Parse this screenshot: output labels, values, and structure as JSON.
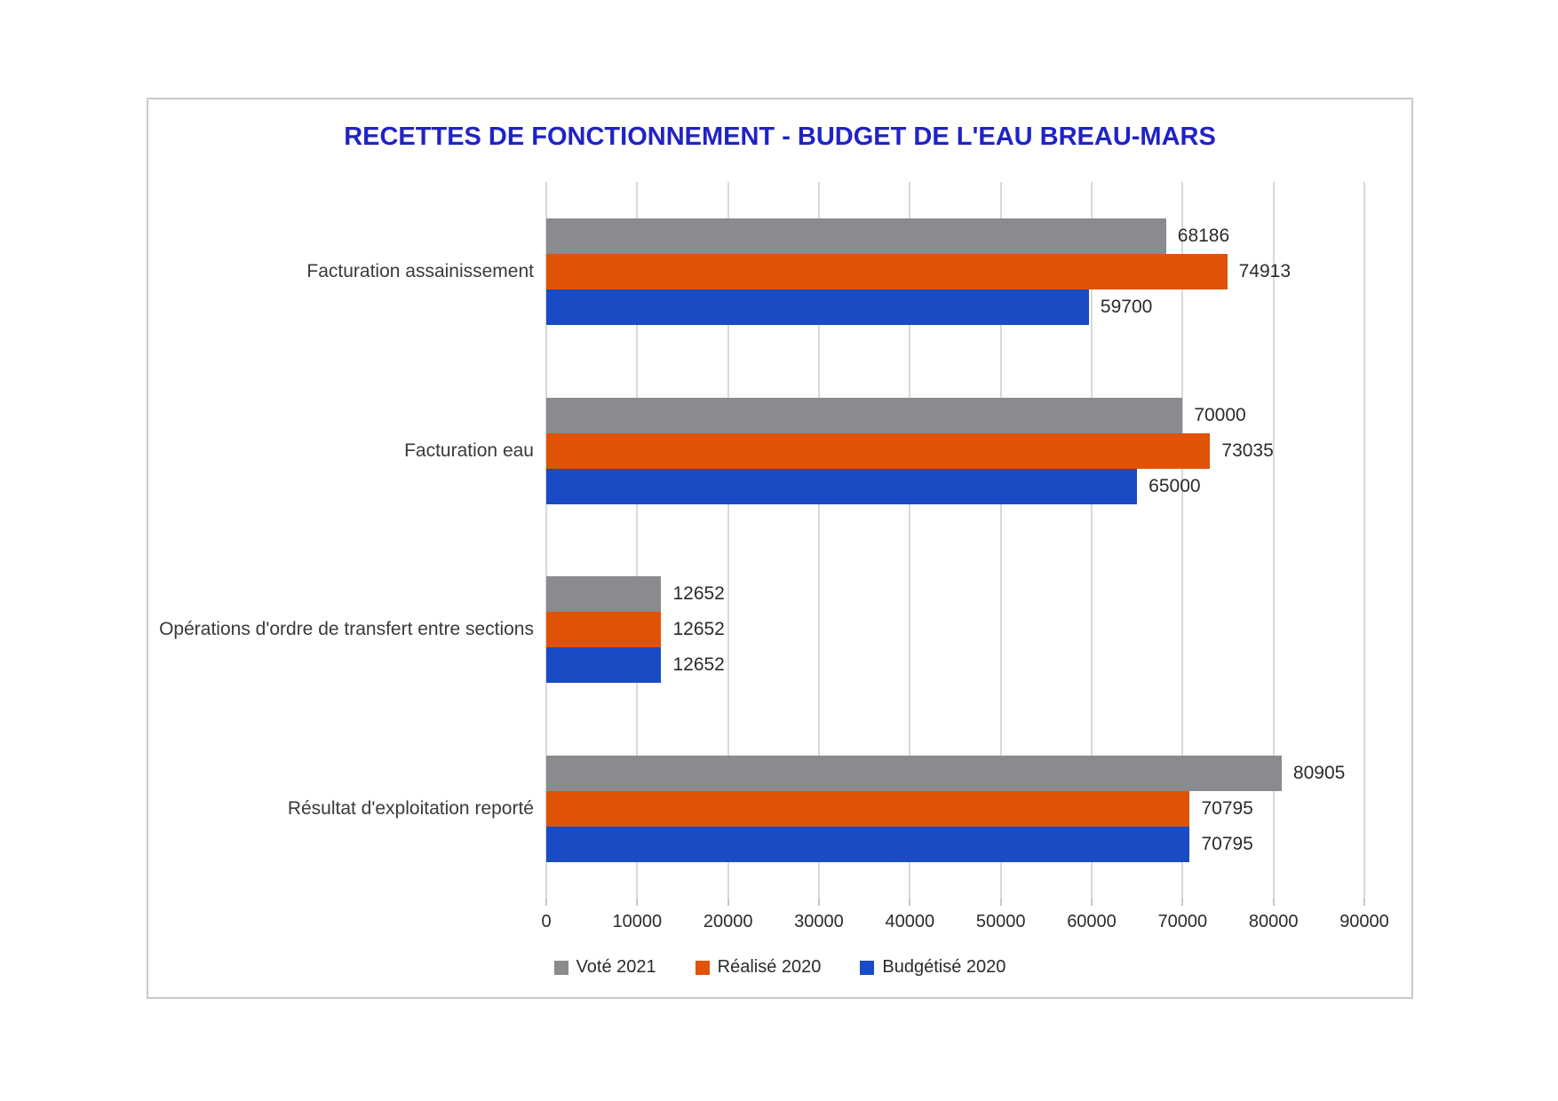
{
  "title": "RECETTES DE FONCTIONNEMENT - BUDGET DE L'EAU BREAU-MARS",
  "colors": {
    "title_text": "#2023c4",
    "vote_2021": "#8a8b8e",
    "realise_2020": "#e05206",
    "budgetise_2020": "#1a4bc4",
    "gridline": "#d9d9d9"
  },
  "chart_data": {
    "type": "bar",
    "orientation": "horizontal",
    "title": "RECETTES DE FONCTIONNEMENT - BUDGET DE L'EAU BREAU-MARS",
    "categories": [
      "Facturation assainissement",
      "Facturation eau",
      "Opérations d'ordre de transfert entre sections",
      "Résultat d'exploitation reporté"
    ],
    "series": [
      {
        "name": "Voté 2021",
        "color": "#8a8b8e",
        "values": [
          68186,
          70000,
          12652,
          80905
        ]
      },
      {
        "name": "Réalisé 2020",
        "color": "#e05206",
        "values": [
          74913,
          73035,
          12652,
          70795
        ]
      },
      {
        "name": "Budgétisé 2020",
        "color": "#1a4bc4",
        "values": [
          59700,
          65000,
          12652,
          70795
        ]
      }
    ],
    "x_ticks": [
      "0",
      "10000",
      "20000",
      "30000",
      "40000",
      "50000",
      "60000",
      "70000",
      "80000",
      "90000"
    ],
    "xlim": [
      0,
      90000
    ],
    "grid": true,
    "legend_position": "bottom",
    "data_labels": true
  }
}
